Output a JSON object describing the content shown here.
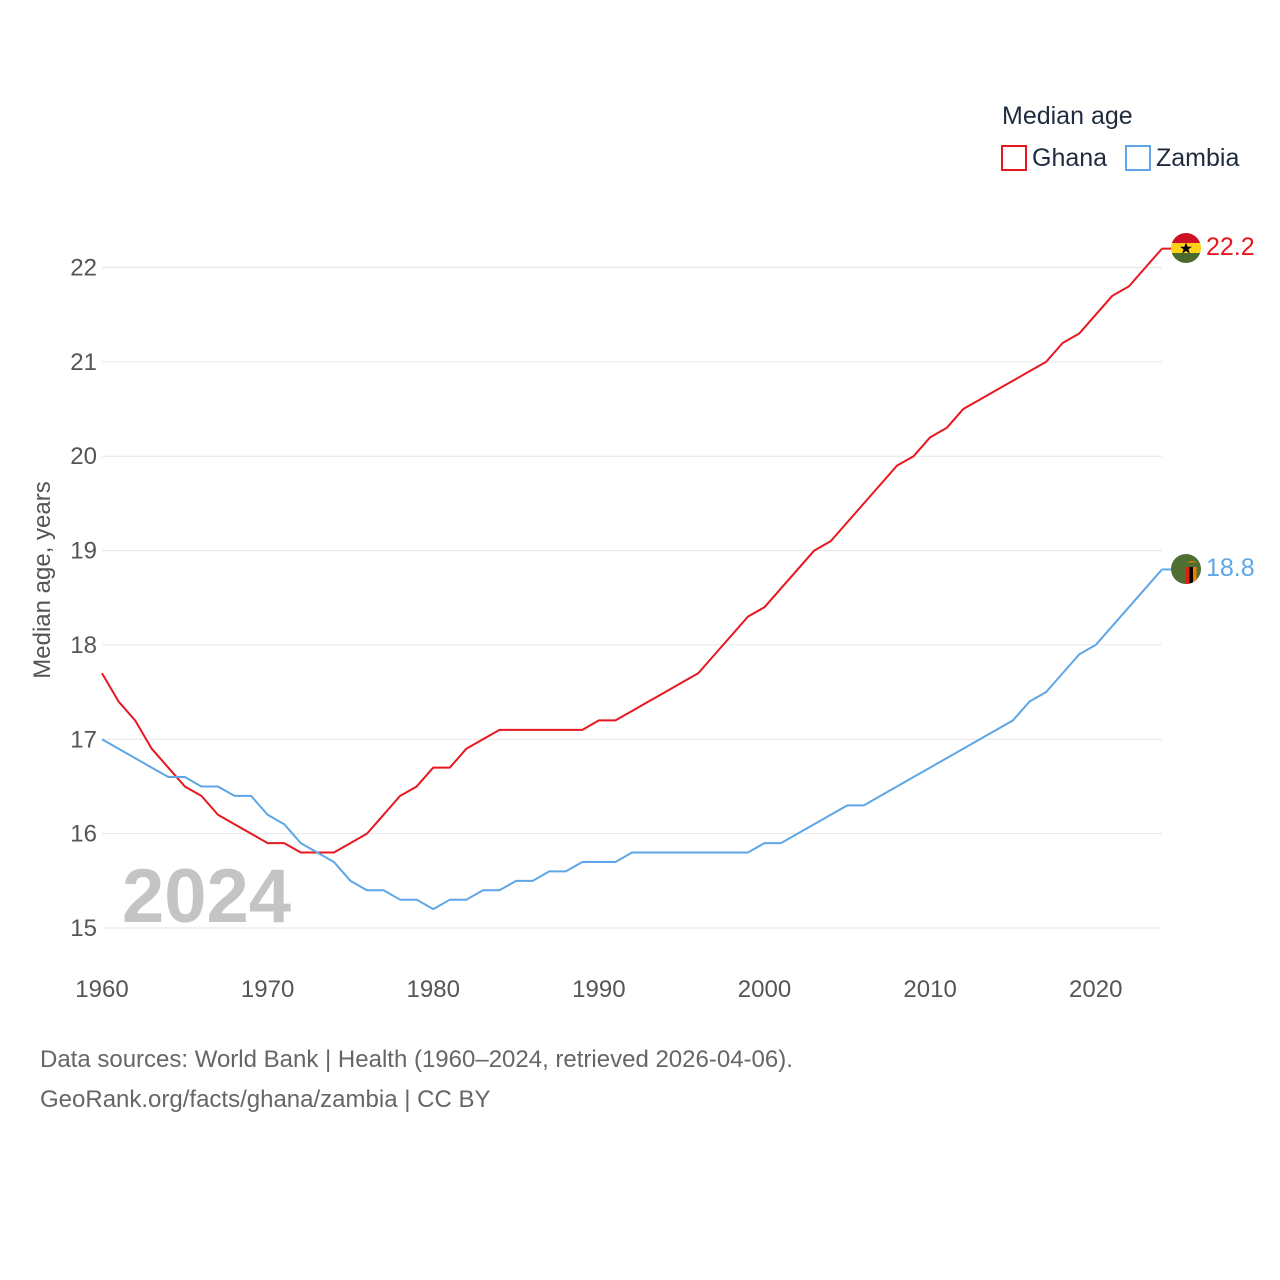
{
  "chart_data": {
    "type": "line",
    "ylabel": "Median age, years",
    "xlabel": "",
    "ylim": [
      15,
      22.2
    ],
    "xlim": [
      1960,
      2024
    ],
    "yticks": [
      15,
      16,
      17,
      18,
      19,
      20,
      21,
      22
    ],
    "xticks": [
      1960,
      1970,
      1980,
      1990,
      2000,
      2010,
      2020
    ],
    "grid": true,
    "legend": {
      "title": "Median age",
      "position": "top-right"
    },
    "year_label": "2024",
    "x": [
      1960,
      1961,
      1962,
      1963,
      1964,
      1965,
      1966,
      1967,
      1968,
      1969,
      1970,
      1971,
      1972,
      1973,
      1974,
      1975,
      1976,
      1977,
      1978,
      1979,
      1980,
      1981,
      1982,
      1983,
      1984,
      1985,
      1986,
      1987,
      1988,
      1989,
      1990,
      1991,
      1992,
      1993,
      1994,
      1995,
      1996,
      1997,
      1998,
      1999,
      2000,
      2001,
      2002,
      2003,
      2004,
      2005,
      2006,
      2007,
      2008,
      2009,
      2010,
      2011,
      2012,
      2013,
      2014,
      2015,
      2016,
      2017,
      2018,
      2019,
      2020,
      2021,
      2022,
      2023,
      2024
    ],
    "series": [
      {
        "name": "Ghana",
        "color": "#e8171f",
        "end_label": "22.2",
        "values": [
          17.7,
          17.4,
          17.2,
          16.9,
          16.7,
          16.5,
          16.4,
          16.2,
          16.1,
          16.0,
          15.9,
          15.9,
          15.8,
          15.8,
          15.8,
          15.9,
          16.0,
          16.2,
          16.4,
          16.5,
          16.7,
          16.7,
          16.9,
          17.0,
          17.1,
          17.1,
          17.1,
          17.1,
          17.1,
          17.1,
          17.2,
          17.2,
          17.3,
          17.4,
          17.5,
          17.6,
          17.7,
          17.9,
          18.1,
          18.3,
          18.4,
          18.6,
          18.8,
          19.0,
          19.1,
          19.3,
          19.5,
          19.7,
          19.9,
          20.0,
          20.2,
          20.3,
          20.5,
          20.6,
          20.7,
          20.8,
          20.9,
          21.0,
          21.2,
          21.3,
          21.5,
          21.7,
          21.8,
          22.0,
          22.2
        ]
      },
      {
        "name": "Zambia",
        "color": "#5ea6e6",
        "end_label": "18.8",
        "values": [
          17.0,
          16.9,
          16.8,
          16.7,
          16.6,
          16.6,
          16.5,
          16.5,
          16.4,
          16.4,
          16.2,
          16.1,
          15.9,
          15.8,
          15.7,
          15.5,
          15.4,
          15.4,
          15.3,
          15.3,
          15.2,
          15.3,
          15.3,
          15.4,
          15.4,
          15.5,
          15.5,
          15.6,
          15.6,
          15.7,
          15.7,
          15.7,
          15.8,
          15.8,
          15.8,
          15.8,
          15.8,
          15.8,
          15.8,
          15.8,
          15.9,
          15.9,
          16.0,
          16.1,
          16.2,
          16.3,
          16.3,
          16.4,
          16.5,
          16.6,
          16.7,
          16.8,
          16.9,
          17.0,
          17.1,
          17.2,
          17.4,
          17.5,
          17.7,
          17.9,
          18.0,
          18.2,
          18.4,
          18.6,
          18.8
        ]
      }
    ]
  },
  "footer": {
    "sources": "Data sources: World Bank | Health (1960–2024, retrieved 2026-04-06).",
    "attribution": "GeoRank.org/facts/ghana/zambia | CC BY"
  },
  "icons": {
    "ghana_flag": "ghana-flag-icon",
    "zambia_flag": "zambia-flag-icon"
  }
}
